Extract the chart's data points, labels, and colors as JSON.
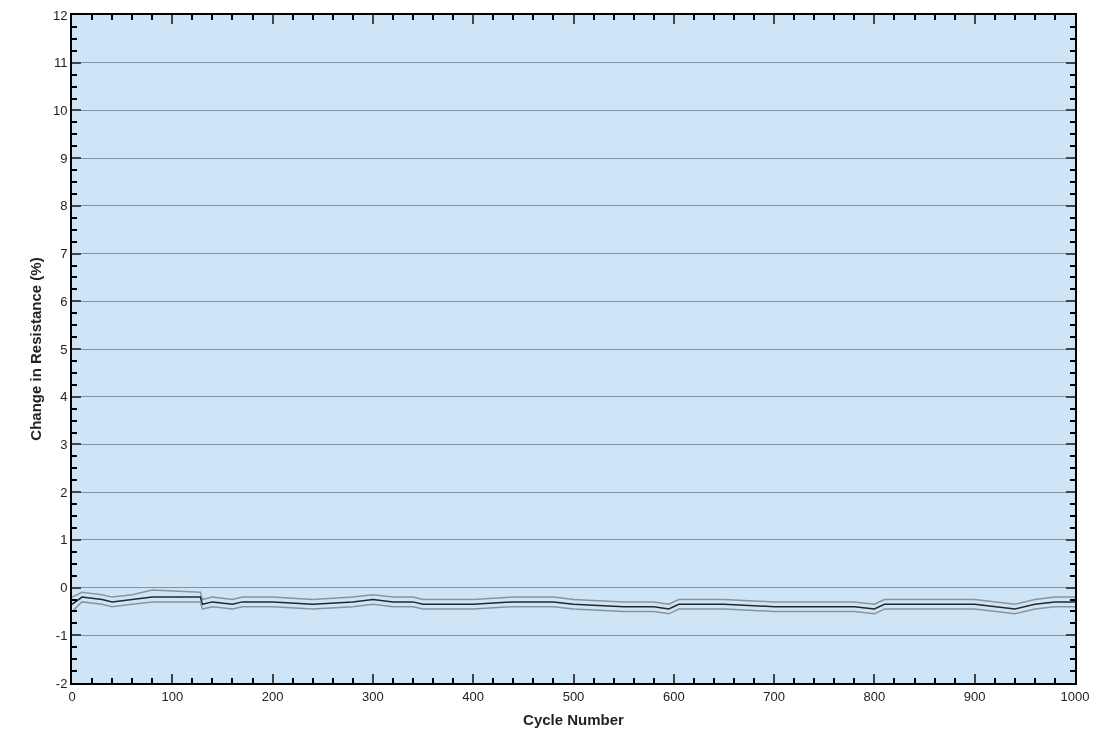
{
  "chart_data": {
    "type": "line",
    "xlabel": "Cycle Number",
    "ylabel": "Change in Resistance (%)",
    "xlim": [
      0,
      1000
    ],
    "xticks": [
      0,
      100,
      200,
      300,
      400,
      500,
      600,
      700,
      800,
      900,
      1000
    ],
    "ylim": [
      -2,
      12
    ],
    "yticks": [
      -2,
      -1,
      0,
      1,
      2,
      3,
      4,
      5,
      6,
      7,
      8,
      9,
      10,
      11,
      12
    ],
    "grid": "y",
    "marker": "none",
    "line_style": "solid",
    "x": [
      0,
      10,
      30,
      40,
      60,
      80,
      128,
      130,
      140,
      160,
      170,
      200,
      240,
      280,
      300,
      320,
      340,
      350,
      400,
      440,
      460,
      480,
      500,
      550,
      580,
      595,
      605,
      650,
      700,
      780,
      800,
      810,
      900,
      940,
      960,
      980,
      1000
    ],
    "series": [
      {
        "color": "#8a949c",
        "values": [
          -0.2,
          -0.1,
          -0.15,
          -0.2,
          -0.15,
          -0.05,
          -0.1,
          -0.25,
          -0.2,
          -0.25,
          -0.2,
          -0.2,
          -0.25,
          -0.2,
          -0.15,
          -0.2,
          -0.2,
          -0.25,
          -0.25,
          -0.2,
          -0.2,
          -0.2,
          -0.25,
          -0.3,
          -0.3,
          -0.35,
          -0.25,
          -0.25,
          -0.3,
          -0.3,
          -0.35,
          -0.25,
          -0.25,
          -0.35,
          -0.25,
          -0.2,
          -0.2
        ]
      },
      {
        "color": "#23272b",
        "values": [
          -0.35,
          -0.2,
          -0.25,
          -0.3,
          -0.25,
          -0.2,
          -0.2,
          -0.35,
          -0.3,
          -0.35,
          -0.3,
          -0.3,
          -0.35,
          -0.3,
          -0.25,
          -0.3,
          -0.3,
          -0.35,
          -0.35,
          -0.3,
          -0.3,
          -0.3,
          -0.35,
          -0.4,
          -0.4,
          -0.45,
          -0.35,
          -0.35,
          -0.4,
          -0.4,
          -0.45,
          -0.35,
          -0.35,
          -0.45,
          -0.35,
          -0.3,
          -0.3
        ]
      },
      {
        "color": "#8a949c",
        "values": [
          -0.5,
          -0.3,
          -0.35,
          -0.4,
          -0.35,
          -0.3,
          -0.3,
          -0.45,
          -0.4,
          -0.45,
          -0.4,
          -0.4,
          -0.45,
          -0.4,
          -0.35,
          -0.4,
          -0.4,
          -0.45,
          -0.45,
          -0.4,
          -0.4,
          -0.4,
          -0.45,
          -0.5,
          -0.5,
          -0.55,
          -0.45,
          -0.45,
          -0.5,
          -0.5,
          -0.55,
          -0.45,
          -0.45,
          -0.55,
          -0.45,
          -0.4,
          -0.4
        ]
      }
    ]
  }
}
